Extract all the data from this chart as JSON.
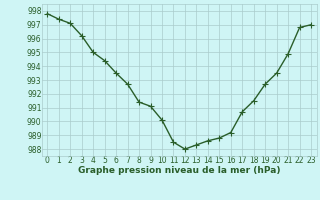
{
  "x": [
    0,
    1,
    2,
    3,
    4,
    5,
    6,
    7,
    8,
    9,
    10,
    11,
    12,
    13,
    14,
    15,
    16,
    17,
    18,
    19,
    20,
    21,
    22,
    23
  ],
  "y": [
    997.8,
    997.4,
    997.1,
    996.2,
    995.0,
    994.4,
    993.5,
    992.7,
    991.4,
    991.1,
    990.1,
    988.5,
    988.0,
    988.3,
    988.6,
    988.8,
    989.2,
    990.7,
    991.5,
    992.7,
    993.5,
    994.9,
    996.8,
    997.0
  ],
  "line_color": "#2a5e2a",
  "marker": "+",
  "marker_size": 4,
  "bg_color": "#cff5f5",
  "grid_color": "#aacccc",
  "xlabel": "Graphe pression niveau de la mer (hPa)",
  "xlabel_fontsize": 6.5,
  "ylim": [
    987.5,
    998.5
  ],
  "xlim": [
    -0.5,
    23.5
  ],
  "yticks": [
    988,
    989,
    990,
    991,
    992,
    993,
    994,
    995,
    996,
    997,
    998
  ],
  "xticks": [
    0,
    1,
    2,
    3,
    4,
    5,
    6,
    7,
    8,
    9,
    10,
    11,
    12,
    13,
    14,
    15,
    16,
    17,
    18,
    19,
    20,
    21,
    22,
    23
  ],
  "tick_fontsize": 5.5,
  "tick_color": "#2a5e2a",
  "linewidth": 1.0
}
